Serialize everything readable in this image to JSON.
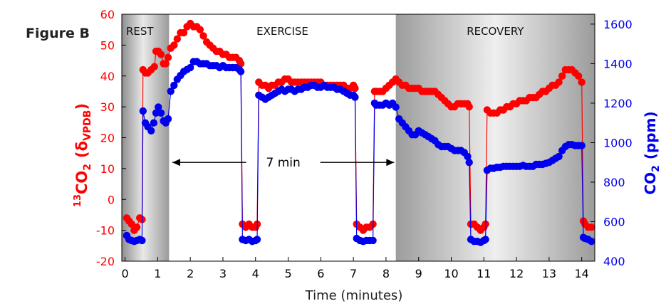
{
  "figure_label": "Figure B",
  "chart_data": {
    "type": "scatter",
    "xlabel": "Time (minutes)",
    "x_ticks": [
      0,
      1,
      2,
      3,
      4,
      5,
      6,
      7,
      8,
      9,
      10,
      11,
      12,
      13,
      14
    ],
    "xlim": [
      -0.1,
      14.4
    ],
    "y_left": {
      "label_sup": "13",
      "label_main": "CO",
      "label_sub": "2",
      "label_paren_open": "(",
      "label_delta": "δ",
      "label_delta_sub": "VPDB",
      "label_paren_close": ")",
      "ticks": [
        -20,
        -10,
        0,
        10,
        20,
        30,
        40,
        50,
        60
      ],
      "ylim": [
        -20,
        60
      ],
      "color": "#ff0000"
    },
    "y_right": {
      "label_main": "CO",
      "label_sub": "2",
      "label_unit": "(ppm)",
      "ticks": [
        400,
        600,
        800,
        1000,
        1200,
        1400,
        1600
      ],
      "ylim": [
        400,
        1650
      ],
      "color": "#0000ee"
    },
    "phases": [
      {
        "label": "REST",
        "start": -0.1,
        "end": 1.35
      },
      {
        "label": "EXERCISE",
        "start": 1.35,
        "end": 8.3
      },
      {
        "label": "RECOVERY",
        "start": 8.3,
        "end": 14.4
      }
    ],
    "annotation": {
      "text": "7 min",
      "x_start": 1.45,
      "x_end": 8.25,
      "y": 12
    },
    "series": [
      {
        "axis": "left",
        "color": "#ff0000",
        "points": [
          [
            0.05,
            -6
          ],
          [
            0.12,
            -7
          ],
          [
            0.2,
            -8
          ],
          [
            0.28,
            -10
          ],
          [
            0.36,
            -9
          ],
          [
            0.45,
            -6
          ],
          [
            0.52,
            -6.5
          ],
          [
            0.55,
            42
          ],
          [
            0.62,
            41
          ],
          [
            0.7,
            41
          ],
          [
            0.8,
            42
          ],
          [
            0.9,
            43
          ],
          [
            0.95,
            48
          ],
          [
            1.02,
            48
          ],
          [
            1.1,
            47
          ],
          [
            1.18,
            44
          ],
          [
            1.25,
            44
          ],
          [
            1.32,
            46
          ],
          [
            1.4,
            49
          ],
          [
            1.5,
            50
          ],
          [
            1.6,
            52
          ],
          [
            1.7,
            54
          ],
          [
            1.8,
            54
          ],
          [
            1.9,
            56
          ],
          [
            2.0,
            57
          ],
          [
            2.1,
            56
          ],
          [
            2.2,
            56
          ],
          [
            2.3,
            55
          ],
          [
            2.4,
            53
          ],
          [
            2.5,
            51
          ],
          [
            2.6,
            50
          ],
          [
            2.7,
            49
          ],
          [
            2.8,
            48
          ],
          [
            2.9,
            48
          ],
          [
            3.0,
            47
          ],
          [
            3.1,
            47
          ],
          [
            3.2,
            46
          ],
          [
            3.3,
            46
          ],
          [
            3.4,
            46
          ],
          [
            3.5,
            45
          ],
          [
            3.55,
            44
          ],
          [
            3.6,
            -8
          ],
          [
            3.7,
            -9
          ],
          [
            3.8,
            -8
          ],
          [
            3.9,
            -9
          ],
          [
            4.0,
            -9
          ],
          [
            4.05,
            -8
          ],
          [
            4.1,
            38
          ],
          [
            4.2,
            37
          ],
          [
            4.3,
            37
          ],
          [
            4.4,
            36
          ],
          [
            4.5,
            37
          ],
          [
            4.6,
            37
          ],
          [
            4.7,
            38
          ],
          [
            4.8,
            38
          ],
          [
            4.9,
            39
          ],
          [
            5.0,
            39
          ],
          [
            5.1,
            38
          ],
          [
            5.2,
            38
          ],
          [
            5.3,
            38
          ],
          [
            5.4,
            38
          ],
          [
            5.5,
            38
          ],
          [
            5.6,
            38
          ],
          [
            5.7,
            38
          ],
          [
            5.8,
            38
          ],
          [
            5.9,
            38
          ],
          [
            6.0,
            38
          ],
          [
            6.1,
            37
          ],
          [
            6.2,
            37
          ],
          [
            6.3,
            37
          ],
          [
            6.4,
            37
          ],
          [
            6.5,
            37
          ],
          [
            6.6,
            37
          ],
          [
            6.7,
            37
          ],
          [
            6.8,
            36
          ],
          [
            6.9,
            36
          ],
          [
            7.0,
            37
          ],
          [
            7.05,
            36
          ],
          [
            7.1,
            -8
          ],
          [
            7.2,
            -9
          ],
          [
            7.3,
            -10
          ],
          [
            7.4,
            -9
          ],
          [
            7.5,
            -9
          ],
          [
            7.6,
            -8
          ],
          [
            7.65,
            35
          ],
          [
            7.7,
            35
          ],
          [
            7.8,
            35
          ],
          [
            7.9,
            35
          ],
          [
            8.0,
            36
          ],
          [
            8.1,
            37
          ],
          [
            8.2,
            38
          ],
          [
            8.3,
            39
          ],
          [
            8.4,
            38
          ],
          [
            8.5,
            37
          ],
          [
            8.6,
            37
          ],
          [
            8.7,
            36
          ],
          [
            8.8,
            36
          ],
          [
            8.9,
            36
          ],
          [
            9.0,
            36
          ],
          [
            9.1,
            35
          ],
          [
            9.2,
            35
          ],
          [
            9.3,
            35
          ],
          [
            9.4,
            35
          ],
          [
            9.5,
            35
          ],
          [
            9.6,
            34
          ],
          [
            9.7,
            33
          ],
          [
            9.8,
            32
          ],
          [
            9.9,
            31
          ],
          [
            10.0,
            30
          ],
          [
            10.1,
            30
          ],
          [
            10.2,
            31
          ],
          [
            10.3,
            31
          ],
          [
            10.4,
            31
          ],
          [
            10.5,
            31
          ],
          [
            10.55,
            30
          ],
          [
            10.6,
            -8
          ],
          [
            10.7,
            -8
          ],
          [
            10.8,
            -9
          ],
          [
            10.9,
            -10
          ],
          [
            11.0,
            -9
          ],
          [
            11.05,
            -8
          ],
          [
            11.1,
            29
          ],
          [
            11.2,
            28
          ],
          [
            11.3,
            28
          ],
          [
            11.4,
            28
          ],
          [
            11.5,
            29
          ],
          [
            11.6,
            29
          ],
          [
            11.7,
            30
          ],
          [
            11.8,
            30
          ],
          [
            11.9,
            31
          ],
          [
            12.0,
            31
          ],
          [
            12.1,
            32
          ],
          [
            12.2,
            32
          ],
          [
            12.3,
            32
          ],
          [
            12.4,
            33
          ],
          [
            12.5,
            33
          ],
          [
            12.6,
            33
          ],
          [
            12.7,
            34
          ],
          [
            12.8,
            35
          ],
          [
            12.9,
            35
          ],
          [
            13.0,
            36
          ],
          [
            13.1,
            37
          ],
          [
            13.2,
            37
          ],
          [
            13.3,
            38
          ],
          [
            13.4,
            40
          ],
          [
            13.5,
            42
          ],
          [
            13.6,
            42
          ],
          [
            13.7,
            42
          ],
          [
            13.8,
            41
          ],
          [
            13.9,
            40
          ],
          [
            14.0,
            38
          ],
          [
            14.05,
            -7
          ],
          [
            14.1,
            -8
          ],
          [
            14.2,
            -9
          ],
          [
            14.3,
            -9
          ]
        ]
      },
      {
        "axis": "right",
        "color": "#0000ee",
        "points": [
          [
            0.05,
            530
          ],
          [
            0.12,
            510
          ],
          [
            0.2,
            505
          ],
          [
            0.28,
            500
          ],
          [
            0.36,
            505
          ],
          [
            0.45,
            510
          ],
          [
            0.52,
            505
          ],
          [
            0.55,
            1160
          ],
          [
            0.62,
            1100
          ],
          [
            0.7,
            1080
          ],
          [
            0.8,
            1060
          ],
          [
            0.88,
            1100
          ],
          [
            0.95,
            1150
          ],
          [
            1.02,
            1180
          ],
          [
            1.1,
            1150
          ],
          [
            1.18,
            1110
          ],
          [
            1.25,
            1100
          ],
          [
            1.32,
            1120
          ],
          [
            1.4,
            1260
          ],
          [
            1.5,
            1290
          ],
          [
            1.6,
            1320
          ],
          [
            1.7,
            1340
          ],
          [
            1.8,
            1360
          ],
          [
            1.9,
            1370
          ],
          [
            2.0,
            1380
          ],
          [
            2.1,
            1410
          ],
          [
            2.2,
            1410
          ],
          [
            2.3,
            1400
          ],
          [
            2.4,
            1400
          ],
          [
            2.5,
            1400
          ],
          [
            2.6,
            1390
          ],
          [
            2.7,
            1390
          ],
          [
            2.8,
            1390
          ],
          [
            2.9,
            1380
          ],
          [
            3.0,
            1390
          ],
          [
            3.1,
            1380
          ],
          [
            3.2,
            1380
          ],
          [
            3.3,
            1380
          ],
          [
            3.4,
            1380
          ],
          [
            3.5,
            1370
          ],
          [
            3.55,
            1360
          ],
          [
            3.6,
            510
          ],
          [
            3.7,
            505
          ],
          [
            3.8,
            510
          ],
          [
            3.9,
            500
          ],
          [
            4.0,
            505
          ],
          [
            4.05,
            510
          ],
          [
            4.1,
            1240
          ],
          [
            4.2,
            1230
          ],
          [
            4.3,
            1220
          ],
          [
            4.4,
            1230
          ],
          [
            4.5,
            1240
          ],
          [
            4.6,
            1250
          ],
          [
            4.7,
            1260
          ],
          [
            4.8,
            1270
          ],
          [
            4.9,
            1260
          ],
          [
            5.0,
            1270
          ],
          [
            5.1,
            1270
          ],
          [
            5.2,
            1260
          ],
          [
            5.3,
            1270
          ],
          [
            5.4,
            1270
          ],
          [
            5.5,
            1280
          ],
          [
            5.6,
            1280
          ],
          [
            5.7,
            1290
          ],
          [
            5.8,
            1290
          ],
          [
            5.9,
            1280
          ],
          [
            6.0,
            1280
          ],
          [
            6.1,
            1290
          ],
          [
            6.2,
            1280
          ],
          [
            6.3,
            1280
          ],
          [
            6.4,
            1280
          ],
          [
            6.5,
            1270
          ],
          [
            6.6,
            1270
          ],
          [
            6.7,
            1260
          ],
          [
            6.8,
            1250
          ],
          [
            6.9,
            1240
          ],
          [
            7.0,
            1240
          ],
          [
            7.05,
            1230
          ],
          [
            7.1,
            515
          ],
          [
            7.2,
            505
          ],
          [
            7.3,
            500
          ],
          [
            7.4,
            505
          ],
          [
            7.5,
            505
          ],
          [
            7.6,
            505
          ],
          [
            7.65,
            1200
          ],
          [
            7.7,
            1190
          ],
          [
            7.8,
            1190
          ],
          [
            7.9,
            1190
          ],
          [
            8.0,
            1200
          ],
          [
            8.1,
            1190
          ],
          [
            8.2,
            1200
          ],
          [
            8.3,
            1180
          ],
          [
            8.4,
            1120
          ],
          [
            8.5,
            1100
          ],
          [
            8.6,
            1080
          ],
          [
            8.7,
            1060
          ],
          [
            8.8,
            1040
          ],
          [
            8.9,
            1040
          ],
          [
            9.0,
            1060
          ],
          [
            9.1,
            1050
          ],
          [
            9.2,
            1040
          ],
          [
            9.3,
            1030
          ],
          [
            9.4,
            1020
          ],
          [
            9.5,
            1010
          ],
          [
            9.6,
            990
          ],
          [
            9.7,
            980
          ],
          [
            9.8,
            980
          ],
          [
            9.9,
            980
          ],
          [
            10.0,
            970
          ],
          [
            10.1,
            960
          ],
          [
            10.2,
            960
          ],
          [
            10.3,
            960
          ],
          [
            10.4,
            950
          ],
          [
            10.5,
            930
          ],
          [
            10.55,
            900
          ],
          [
            10.6,
            510
          ],
          [
            10.7,
            500
          ],
          [
            10.8,
            500
          ],
          [
            10.9,
            495
          ],
          [
            11.0,
            505
          ],
          [
            11.05,
            510
          ],
          [
            11.1,
            860
          ],
          [
            11.2,
            870
          ],
          [
            11.3,
            870
          ],
          [
            11.4,
            875
          ],
          [
            11.5,
            875
          ],
          [
            11.6,
            880
          ],
          [
            11.7,
            880
          ],
          [
            11.8,
            880
          ],
          [
            11.9,
            880
          ],
          [
            12.0,
            880
          ],
          [
            12.1,
            880
          ],
          [
            12.2,
            885
          ],
          [
            12.3,
            880
          ],
          [
            12.4,
            880
          ],
          [
            12.5,
            880
          ],
          [
            12.6,
            890
          ],
          [
            12.7,
            890
          ],
          [
            12.8,
            890
          ],
          [
            12.9,
            895
          ],
          [
            13.0,
            900
          ],
          [
            13.1,
            910
          ],
          [
            13.2,
            920
          ],
          [
            13.3,
            930
          ],
          [
            13.4,
            960
          ],
          [
            13.5,
            980
          ],
          [
            13.6,
            990
          ],
          [
            13.7,
            990
          ],
          [
            13.8,
            985
          ],
          [
            13.9,
            985
          ],
          [
            14.0,
            985
          ],
          [
            14.05,
            520
          ],
          [
            14.1,
            515
          ],
          [
            14.2,
            510
          ],
          [
            14.3,
            500
          ]
        ]
      }
    ]
  }
}
